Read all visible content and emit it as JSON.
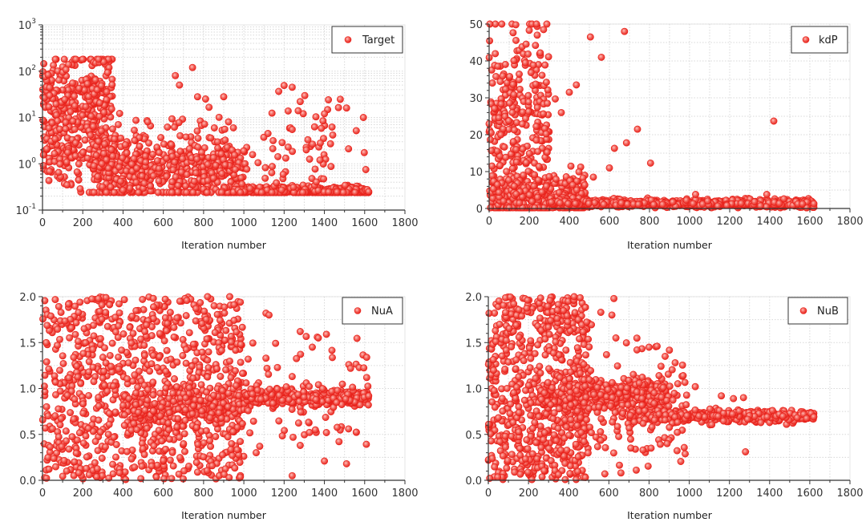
{
  "marker_color": "#e8221b",
  "marker_highlight": "#ffb3ad",
  "grid_color": "#d8d8d8",
  "chart_data": [
    {
      "id": "target",
      "type": "scatter",
      "legend": "Target",
      "legend_placement": "top-right",
      "xlabel": "Iteration number",
      "ylabel": "",
      "xlim": [
        0,
        1800
      ],
      "ylim": [
        0.1,
        1000
      ],
      "yscale": "log",
      "grid": true,
      "xticks": [
        0,
        200,
        400,
        600,
        800,
        1000,
        1200,
        1400,
        1600,
        1800
      ],
      "xtick_labels": [
        "0",
        "200",
        "400",
        "600",
        "800",
        "1000",
        "1200",
        "1400",
        "1600",
        "1800"
      ],
      "yticks": [
        0.1,
        1,
        10,
        100,
        1000
      ],
      "ytick_labels": [
        {
          "base": "10",
          "exp": "-1"
        },
        {
          "base": "10",
          "exp": "0"
        },
        {
          "base": "10",
          "exp": "1"
        },
        {
          "base": "10",
          "exp": "2"
        },
        {
          "base": "10",
          "exp": "3"
        }
      ],
      "n_points": 1620,
      "highlighted_points": [
        [
          745,
          120
        ],
        [
          900,
          28
        ],
        [
          1240,
          45
        ],
        [
          1280,
          22
        ],
        [
          1420,
          24
        ],
        [
          1510,
          16
        ],
        [
          1270,
          14
        ],
        [
          1400,
          12
        ],
        [
          1240,
          5.5
        ],
        [
          1120,
          4.5
        ],
        [
          1220,
          2.3
        ],
        [
          1310,
          2
        ],
        [
          1380,
          2.8
        ],
        [
          1520,
          2.1
        ],
        [
          80,
          0.65
        ],
        [
          400,
          0.27
        ],
        [
          1620,
          0.25
        ],
        [
          660,
          80
        ],
        [
          680,
          50
        ],
        [
          770,
          28
        ],
        [
          810,
          25
        ]
      ],
      "distribution": [
        {
          "x_range": [
            0,
            350
          ],
          "log_center": 1.4,
          "log_spread": 0.55,
          "weight": 0.2
        },
        {
          "x_range": [
            0,
            520
          ],
          "log_center": 0.2,
          "log_spread": 0.35,
          "weight": 0.12
        },
        {
          "x_range": [
            250,
            1000
          ],
          "log_center": -0.15,
          "log_spread": 0.35,
          "weight": 0.3
        },
        {
          "x_range": [
            900,
            1620
          ],
          "log_center": -0.6,
          "log_spread": 0.06,
          "weight": 0.3
        },
        {
          "x_range": [
            600,
            1620
          ],
          "log_center": 0.2,
          "log_spread": 0.6,
          "weight": 0.08
        }
      ]
    },
    {
      "id": "kdp",
      "type": "scatter",
      "legend": "kdP",
      "legend_placement": "top-right",
      "xlabel": "Iteration number",
      "ylabel": "",
      "xlim": [
        0,
        1800
      ],
      "ylim": [
        0,
        50
      ],
      "yscale": "linear",
      "grid": true,
      "xticks": [
        0,
        200,
        400,
        600,
        800,
        1000,
        1200,
        1400,
        1600,
        1800
      ],
      "xtick_labels": [
        "0",
        "200",
        "400",
        "600",
        "800",
        "1000",
        "1200",
        "1400",
        "1600",
        "1800"
      ],
      "yticks": [
        0,
        10,
        20,
        30,
        40,
        50
      ],
      "ytick_labels": [
        "0",
        "10",
        "20",
        "30",
        "40",
        "50"
      ],
      "n_points": 1620,
      "highlighted_points": [
        [
          505,
          46.5
        ],
        [
          560,
          41
        ],
        [
          675,
          48
        ],
        [
          1420,
          23.7
        ],
        [
          740,
          21.5
        ],
        [
          685,
          17.8
        ],
        [
          625,
          16.3
        ],
        [
          805,
          12.3
        ],
        [
          600,
          11
        ],
        [
          520,
          8.5
        ],
        [
          435,
          33.5
        ],
        [
          400,
          31.5
        ],
        [
          330,
          29.7
        ],
        [
          290,
          28.5
        ],
        [
          360,
          26
        ],
        [
          1385,
          3.8
        ],
        [
          1030,
          3.8
        ],
        [
          1620,
          1.3
        ],
        [
          200,
          48.3
        ],
        [
          240,
          47
        ],
        [
          255,
          42.2
        ]
      ],
      "distribution": [
        {
          "x_range": [
            0,
            300
          ],
          "lin_center": 20,
          "lin_spread": 15,
          "weight": 0.2
        },
        {
          "x_range": [
            0,
            480
          ],
          "lin_center": 3,
          "lin_spread": 3,
          "weight": 0.2
        },
        {
          "x_range": [
            300,
            1620
          ],
          "lin_center": 1.4,
          "lin_spread": 0.5,
          "weight": 0.6
        }
      ]
    },
    {
      "id": "nua",
      "type": "scatter",
      "legend": "NuA",
      "legend_placement": "top-right",
      "xlabel": "Iteration number",
      "ylabel": "",
      "xlim": [
        0,
        1800
      ],
      "ylim": [
        0,
        2
      ],
      "yscale": "linear",
      "grid": true,
      "xticks": [
        0,
        200,
        400,
        600,
        800,
        1000,
        1200,
        1400,
        1600,
        1800
      ],
      "xtick_labels": [
        "0",
        "200",
        "400",
        "600",
        "800",
        "1000",
        "1200",
        "1400",
        "1600",
        "1800"
      ],
      "yticks": [
        0,
        0.5,
        1,
        1.5,
        2
      ],
      "ytick_labels": [
        "0.0",
        "0.5",
        "1.0",
        "1.5",
        "2.0"
      ],
      "n_points": 1620,
      "highlighted_points": [
        [
          1110,
          1.82
        ],
        [
          1125,
          1.8
        ],
        [
          1280,
          1.62
        ],
        [
          1410,
          1.59
        ],
        [
          1370,
          1.55
        ],
        [
          1340,
          1.45
        ],
        [
          1110,
          1.33
        ],
        [
          1610,
          1.34
        ],
        [
          1530,
          1.22
        ],
        [
          1610,
          1.12
        ],
        [
          1240,
          1.13
        ],
        [
          1400,
          0.21
        ],
        [
          1510,
          0.18
        ],
        [
          1240,
          0.05
        ],
        [
          1410,
          0.52
        ],
        [
          1520,
          0.56
        ],
        [
          1280,
          0.38
        ],
        [
          1620,
          0.92
        ],
        [
          930,
          2.0
        ],
        [
          820,
          2.0
        ]
      ],
      "distribution": [
        {
          "x_range": [
            0,
            1000
          ],
          "lin_center": 1.0,
          "lin_spread": 1.0,
          "uniform": true,
          "weight": 0.55
        },
        {
          "x_range": [
            400,
            1000
          ],
          "lin_center": 0.78,
          "lin_spread": 0.12,
          "weight": 0.15
        },
        {
          "x_range": [
            1000,
            1620
          ],
          "lin_center": 0.9,
          "lin_spread": 0.04,
          "weight": 0.25
        },
        {
          "x_range": [
            1000,
            1620
          ],
          "lin_center": 0.9,
          "lin_spread": 0.3,
          "weight": 0.05
        }
      ]
    },
    {
      "id": "nub",
      "type": "scatter",
      "legend": "NuB",
      "legend_placement": "top-right",
      "xlabel": "Iteration number",
      "ylabel": "",
      "xlim": [
        0,
        1800
      ],
      "ylim": [
        0,
        2
      ],
      "yscale": "linear",
      "grid": true,
      "xticks": [
        0,
        200,
        400,
        600,
        800,
        1000,
        1200,
        1400,
        1600,
        1800
      ],
      "xtick_labels": [
        "0",
        "200",
        "400",
        "600",
        "800",
        "1000",
        "1200",
        "1400",
        "1600",
        "1800"
      ],
      "yticks": [
        0,
        0.5,
        1,
        1.5,
        2
      ],
      "ytick_labels": [
        "0.0",
        "0.5",
        "1.0",
        "1.5",
        "2.0"
      ],
      "n_points": 1620,
      "highlighted_points": [
        [
          625,
          1.98
        ],
        [
          560,
          1.83
        ],
        [
          615,
          1.8
        ],
        [
          635,
          1.55
        ],
        [
          800,
          1.45
        ],
        [
          840,
          1.46
        ],
        [
          740,
          1.42
        ],
        [
          880,
          1.35
        ],
        [
          930,
          1.28
        ],
        [
          970,
          1.14
        ],
        [
          1030,
          1.02
        ],
        [
          1160,
          0.92
        ],
        [
          1270,
          0.9
        ],
        [
          1220,
          0.89
        ],
        [
          1280,
          0.31
        ],
        [
          890,
          0.4
        ],
        [
          770,
          0.33
        ],
        [
          810,
          0.35
        ],
        [
          580,
          0.07
        ],
        [
          660,
          0.08
        ],
        [
          1620,
          0.69
        ]
      ],
      "distribution": [
        {
          "x_range": [
            0,
            500
          ],
          "lin_center": 1.0,
          "lin_spread": 1.0,
          "uniform": true,
          "weight": 0.4
        },
        {
          "x_range": [
            250,
            900
          ],
          "lin_center": 0.92,
          "lin_spread": 0.08,
          "weight": 0.25
        },
        {
          "x_range": [
            700,
            1620
          ],
          "lin_center": 0.7,
          "lin_spread": 0.03,
          "weight": 0.25
        },
        {
          "x_range": [
            400,
            1000
          ],
          "lin_center": 0.8,
          "lin_spread": 0.35,
          "weight": 0.1
        }
      ]
    }
  ]
}
